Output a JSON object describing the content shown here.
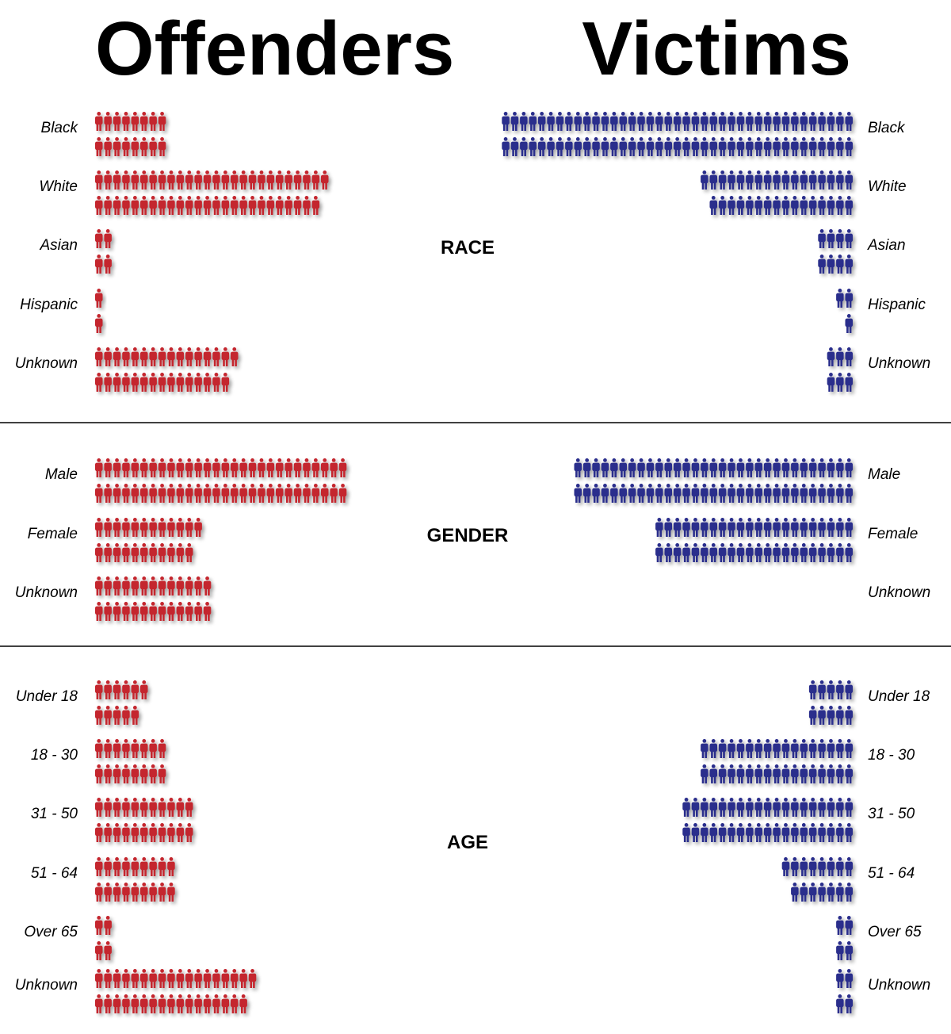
{
  "titles": {
    "offenders": "Offenders",
    "victims": "Victims"
  },
  "colors": {
    "offenders": "#c4262e",
    "victims": "#2b2e8c",
    "divider": "#000000"
  },
  "chart_data": [
    {
      "type": "pictograph",
      "title": "RACE",
      "categories": [
        "Black",
        "White",
        "Asian",
        "Hispanic",
        "Unknown"
      ],
      "series": [
        {
          "name": "Offenders",
          "values": [
            16,
            51,
            4,
            2,
            31
          ]
        },
        {
          "name": "Victims",
          "values": [
            78,
            33,
            8,
            3,
            6
          ]
        }
      ]
    },
    {
      "type": "pictograph",
      "title": "GENDER",
      "categories": [
        "Male",
        "Female",
        "Unknown"
      ],
      "series": [
        {
          "name": "Offenders",
          "values": [
            56,
            23,
            26
          ]
        },
        {
          "name": "Victims",
          "values": [
            62,
            44,
            0
          ]
        }
      ]
    },
    {
      "type": "pictograph",
      "title": "AGE",
      "categories": [
        "Under 18",
        "18 - 30",
        "31 - 50",
        "51 - 64",
        "Over 65",
        "Unknown"
      ],
      "series": [
        {
          "name": "Offenders",
          "values": [
            11,
            16,
            22,
            18,
            4,
            35
          ]
        },
        {
          "name": "Victims",
          "values": [
            10,
            34,
            38,
            15,
            4,
            4
          ]
        }
      ]
    }
  ]
}
